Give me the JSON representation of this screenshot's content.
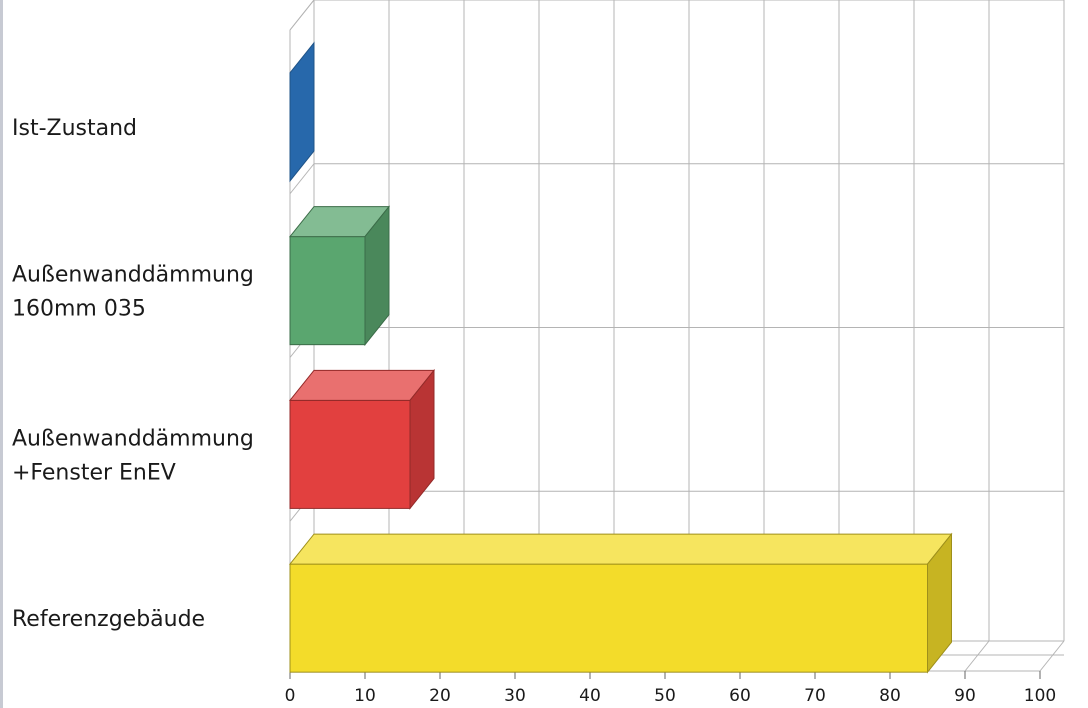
{
  "chart_data": {
    "type": "bar",
    "orientation": "horizontal",
    "style": "3d",
    "categories": [
      "Ist-Zustand",
      "Außenwanddämmung 160mm 035",
      "Außenwanddämmung +Fenster EnEV",
      "Referenzgebäude"
    ],
    "category_lines": [
      [
        "Ist-Zustand"
      ],
      [
        "Außenwanddämmung",
        "160mm 035"
      ],
      [
        "Außenwanddämmung",
        "+Fenster EnEV"
      ],
      [
        "Referenzgebäude"
      ]
    ],
    "values": [
      0,
      10,
      16,
      85
    ],
    "colors": [
      "#2f7fd0",
      "#5aa66f",
      "#e2403f",
      "#f3dc2a"
    ],
    "xlim": [
      0,
      100
    ],
    "xticks": [
      "0",
      "10",
      "20",
      "30",
      "40",
      "50",
      "60",
      "70",
      "80",
      "90",
      "100"
    ],
    "grid": true,
    "legend": "none",
    "title": "",
    "xlabel": "",
    "ylabel": ""
  }
}
